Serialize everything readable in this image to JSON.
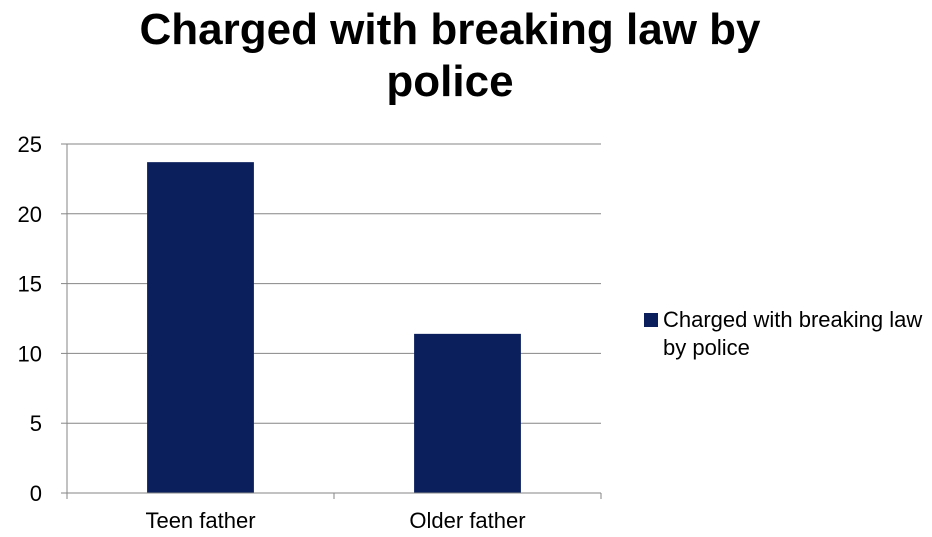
{
  "chart_data": {
    "type": "bar",
    "title": "Charged with breaking law by police",
    "categories": [
      "Teen father",
      "Older father"
    ],
    "series": [
      {
        "name": "Charged with breaking law by police",
        "values": [
          23.7,
          11.4
        ],
        "color": "#0b1f5c"
      }
    ],
    "xlabel": "",
    "ylabel": "",
    "ylim": [
      0,
      25
    ],
    "yticks": [
      0,
      5,
      10,
      15,
      20,
      25
    ],
    "grid": true,
    "legend": "right"
  },
  "colors": {
    "bar": "#0b1f5c",
    "grid": "#868686",
    "axis": "#868686"
  }
}
